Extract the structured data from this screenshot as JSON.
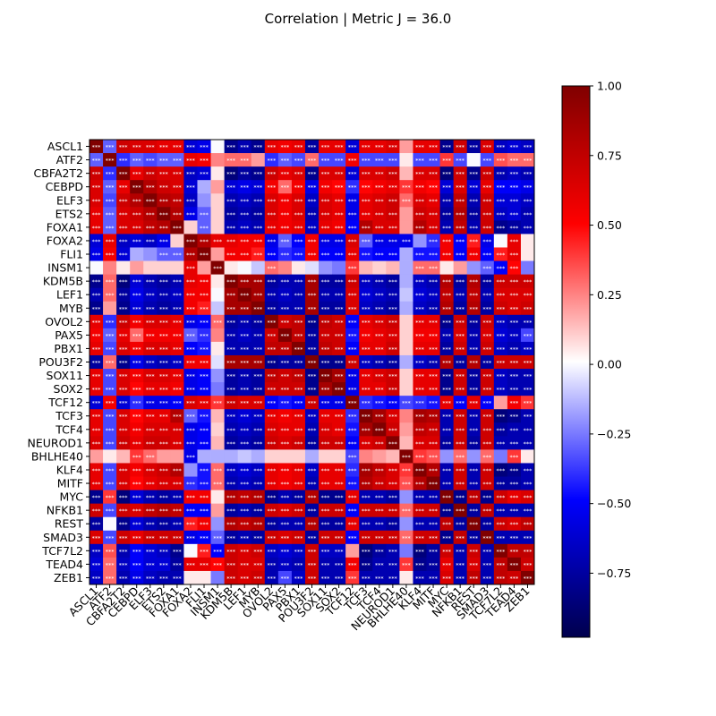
{
  "chart_data": {
    "type": "heatmap",
    "title": "Correlation | Metric J = 36.0",
    "labels": [
      "ASCL1",
      "ATF2",
      "CBFA2T2",
      "CEBPD",
      "ELF3",
      "ETS2",
      "FOXA1",
      "FOXA2",
      "FLI1",
      "INSM1",
      "KDM5B",
      "LEF1",
      "MYB",
      "OVOL2",
      "PAX5",
      "PBX1",
      "POU3F2",
      "SOX11",
      "SOX2",
      "TCF12",
      "TCF3",
      "TCF4",
      "NEUROD1",
      "BHLHE40",
      "KLF4",
      "MITF",
      "MYC",
      "NFKB1",
      "REST",
      "SMAD3",
      "TCF7L2",
      "TEAD4",
      "ZEB1"
    ],
    "colorbar": {
      "colormap": "seismic",
      "vmin": -0.98,
      "vmax": 1.0,
      "ticks": [
        1.0,
        0.75,
        0.5,
        0.25,
        0.0,
        -0.25,
        -0.5,
        -0.75
      ],
      "tick_labels": [
        "1.00",
        "0.75",
        "0.50",
        "0.25",
        "0.00",
        "−0.25",
        "−0.50",
        "−0.75"
      ]
    },
    "annotation": "***",
    "matrix": [
      [
        1.0,
        -0.3,
        0.7,
        0.65,
        0.65,
        0.6,
        0.6,
        -0.6,
        -0.55,
        0.0,
        -0.8,
        -0.7,
        -0.8,
        0.6,
        0.55,
        0.6,
        -0.75,
        0.6,
        0.6,
        -0.6,
        0.6,
        0.6,
        0.65,
        0.2,
        0.6,
        0.6,
        -0.8,
        0.7,
        -0.75,
        0.65,
        -0.65,
        -0.6,
        -0.65
      ],
      [
        -0.3,
        1.0,
        -0.4,
        -0.3,
        -0.35,
        -0.3,
        -0.3,
        0.6,
        0.55,
        0.25,
        0.3,
        0.3,
        0.2,
        -0.4,
        -0.3,
        -0.35,
        0.3,
        -0.35,
        -0.35,
        0.55,
        -0.35,
        -0.35,
        -0.35,
        0.05,
        -0.35,
        -0.35,
        0.4,
        -0.35,
        0.0,
        -0.35,
        0.35,
        0.3,
        0.3
      ],
      [
        0.7,
        -0.4,
        1.0,
        0.6,
        0.7,
        0.65,
        0.65,
        -0.65,
        -0.6,
        0.05,
        -0.85,
        -0.75,
        -0.8,
        0.7,
        0.6,
        0.65,
        -0.8,
        0.65,
        0.65,
        -0.6,
        0.65,
        0.65,
        0.7,
        0.15,
        0.65,
        0.65,
        -0.85,
        0.7,
        -0.8,
        0.7,
        -0.7,
        -0.65,
        -0.7
      ],
      [
        0.65,
        -0.3,
        0.6,
        1.0,
        0.8,
        0.7,
        0.65,
        -0.6,
        -0.15,
        0.2,
        -0.6,
        -0.55,
        -0.6,
        0.55,
        0.3,
        0.55,
        -0.55,
        0.55,
        0.5,
        -0.4,
        0.5,
        0.55,
        0.6,
        0.4,
        0.55,
        0.5,
        -0.6,
        0.65,
        -0.6,
        0.6,
        -0.5,
        -0.5,
        -0.55
      ],
      [
        0.65,
        -0.35,
        0.7,
        0.8,
        1.0,
        0.8,
        0.75,
        -0.65,
        -0.2,
        0.1,
        -0.7,
        -0.65,
        -0.7,
        0.65,
        0.55,
        0.65,
        -0.65,
        0.65,
        0.6,
        -0.55,
        0.6,
        0.65,
        0.7,
        0.3,
        0.65,
        0.6,
        -0.7,
        0.75,
        -0.7,
        0.7,
        -0.6,
        -0.6,
        -0.65
      ],
      [
        0.6,
        -0.3,
        0.65,
        0.7,
        0.8,
        1.0,
        0.8,
        -0.55,
        -0.3,
        0.1,
        -0.75,
        -0.7,
        -0.75,
        0.65,
        0.55,
        0.65,
        -0.7,
        0.65,
        0.6,
        -0.55,
        0.6,
        0.65,
        0.7,
        0.2,
        0.7,
        0.65,
        -0.75,
        0.8,
        -0.75,
        0.7,
        -0.65,
        -0.6,
        -0.7
      ],
      [
        0.6,
        -0.3,
        0.65,
        0.65,
        0.75,
        0.8,
        1.0,
        0.1,
        -0.3,
        0.1,
        -0.7,
        -0.65,
        -0.7,
        0.6,
        0.55,
        0.6,
        -0.65,
        0.6,
        0.55,
        -0.5,
        0.8,
        0.65,
        0.65,
        0.2,
        0.8,
        0.65,
        -0.7,
        0.75,
        -0.7,
        0.7,
        -0.8,
        -0.75,
        -0.7
      ],
      [
        -0.6,
        0.6,
        -0.65,
        -0.6,
        -0.65,
        -0.55,
        0.1,
        1.0,
        0.8,
        0.6,
        0.6,
        0.55,
        0.55,
        -0.55,
        -0.3,
        -0.5,
        0.55,
        -0.55,
        -0.55,
        0.65,
        -0.3,
        -0.55,
        -0.55,
        -0.55,
        -0.2,
        -0.4,
        0.55,
        -0.5,
        0.45,
        -0.55,
        0.0,
        0.6,
        0.05
      ],
      [
        -0.55,
        0.55,
        -0.6,
        -0.15,
        -0.2,
        -0.3,
        -0.3,
        0.8,
        1.0,
        0.2,
        0.55,
        0.55,
        0.45,
        -0.5,
        -0.4,
        -0.45,
        0.55,
        -0.5,
        -0.5,
        0.6,
        -0.45,
        -0.5,
        -0.5,
        -0.15,
        -0.45,
        -0.45,
        0.55,
        -0.5,
        0.55,
        -0.5,
        0.45,
        0.6,
        0.05
      ],
      [
        0.0,
        0.25,
        0.05,
        0.2,
        0.1,
        0.1,
        0.1,
        0.6,
        0.2,
        1.0,
        0.05,
        0.0,
        -0.1,
        0.3,
        0.25,
        0.05,
        -0.05,
        -0.2,
        -0.25,
        0.4,
        0.15,
        0.1,
        0.15,
        -0.15,
        0.3,
        0.3,
        0.05,
        0.2,
        -0.2,
        -0.3,
        -0.5,
        0.5,
        -0.25
      ],
      [
        -0.8,
        0.3,
        -0.85,
        -0.6,
        -0.7,
        -0.75,
        -0.7,
        0.6,
        0.55,
        0.05,
        1.0,
        0.85,
        0.85,
        -0.75,
        -0.7,
        -0.7,
        0.85,
        -0.75,
        -0.75,
        0.7,
        -0.65,
        -0.7,
        -0.75,
        -0.15,
        -0.65,
        -0.7,
        0.8,
        -0.75,
        0.8,
        -0.75,
        0.7,
        0.7,
        0.7
      ],
      [
        -0.7,
        0.3,
        -0.75,
        -0.55,
        -0.65,
        -0.7,
        -0.65,
        0.55,
        0.55,
        0.0,
        0.85,
        1.0,
        0.85,
        -0.7,
        -0.65,
        -0.7,
        0.85,
        -0.7,
        -0.7,
        0.65,
        -0.6,
        -0.65,
        -0.7,
        -0.1,
        -0.6,
        -0.65,
        0.75,
        -0.7,
        0.75,
        -0.7,
        0.65,
        0.65,
        0.65
      ],
      [
        -0.8,
        0.2,
        -0.8,
        -0.6,
        -0.7,
        -0.75,
        -0.7,
        0.55,
        0.45,
        -0.1,
        0.85,
        0.85,
        1.0,
        -0.75,
        -0.7,
        -0.7,
        0.85,
        -0.75,
        -0.75,
        0.65,
        -0.65,
        -0.7,
        -0.75,
        -0.15,
        -0.65,
        -0.7,
        0.8,
        -0.75,
        0.8,
        -0.75,
        0.7,
        0.65,
        0.7
      ],
      [
        0.6,
        -0.4,
        0.7,
        0.55,
        0.65,
        0.65,
        0.6,
        -0.55,
        -0.5,
        0.3,
        -0.75,
        -0.7,
        -0.75,
        1.0,
        0.7,
        0.75,
        -0.8,
        0.75,
        0.7,
        -0.5,
        0.6,
        0.65,
        0.7,
        0.1,
        0.6,
        0.6,
        -0.8,
        0.7,
        -0.75,
        0.7,
        -0.65,
        -0.7,
        -0.7
      ],
      [
        0.55,
        -0.3,
        0.6,
        0.3,
        0.55,
        0.55,
        0.55,
        -0.3,
        -0.4,
        0.25,
        -0.7,
        -0.65,
        -0.7,
        0.7,
        1.0,
        0.75,
        -0.75,
        0.7,
        0.7,
        -0.45,
        0.55,
        0.6,
        0.65,
        0.1,
        0.55,
        0.55,
        -0.7,
        0.65,
        -0.7,
        0.65,
        -0.6,
        -0.65,
        -0.35
      ],
      [
        0.6,
        -0.35,
        0.65,
        0.55,
        0.65,
        0.65,
        0.6,
        -0.5,
        -0.45,
        0.05,
        -0.7,
        -0.7,
        -0.7,
        0.75,
        0.75,
        1.0,
        -0.75,
        0.75,
        0.7,
        -0.5,
        0.6,
        0.6,
        0.7,
        0.1,
        0.6,
        0.6,
        -0.75,
        0.7,
        -0.7,
        0.7,
        -0.65,
        -0.7,
        -0.65
      ],
      [
        -0.75,
        0.3,
        -0.8,
        -0.55,
        -0.65,
        -0.7,
        -0.65,
        0.55,
        0.55,
        -0.05,
        0.85,
        0.85,
        0.85,
        -0.8,
        -0.75,
        -0.75,
        1.0,
        -0.8,
        -0.8,
        0.7,
        -0.65,
        -0.7,
        -0.75,
        -0.15,
        -0.65,
        -0.7,
        0.8,
        -0.75,
        0.8,
        -0.75,
        0.7,
        0.7,
        0.7
      ],
      [
        0.6,
        -0.35,
        0.65,
        0.55,
        0.65,
        0.65,
        0.6,
        -0.55,
        -0.5,
        -0.2,
        -0.75,
        -0.7,
        -0.75,
        0.75,
        0.7,
        0.75,
        -0.8,
        1.0,
        0.85,
        -0.55,
        0.6,
        0.65,
        0.7,
        0.1,
        0.6,
        0.6,
        -0.8,
        0.7,
        -0.75,
        0.7,
        -0.65,
        -0.7,
        -0.7
      ],
      [
        0.6,
        -0.35,
        0.65,
        0.5,
        0.6,
        0.6,
        0.55,
        -0.55,
        -0.5,
        -0.25,
        -0.75,
        -0.7,
        -0.75,
        0.7,
        0.7,
        0.7,
        -0.8,
        0.85,
        1.0,
        -0.55,
        0.6,
        0.6,
        0.7,
        0.1,
        0.6,
        0.6,
        -0.8,
        0.7,
        -0.75,
        0.7,
        -0.65,
        -0.7,
        -0.7
      ],
      [
        -0.6,
        0.55,
        -0.6,
        -0.4,
        -0.55,
        -0.55,
        -0.5,
        0.65,
        0.6,
        0.4,
        0.7,
        0.65,
        0.65,
        -0.5,
        -0.45,
        -0.5,
        0.7,
        -0.55,
        -0.55,
        1.0,
        -0.4,
        -0.45,
        -0.5,
        -0.35,
        -0.4,
        -0.45,
        0.6,
        -0.5,
        0.6,
        -0.5,
        0.2,
        0.55,
        0.4
      ],
      [
        0.6,
        -0.35,
        0.65,
        0.5,
        0.6,
        0.6,
        0.8,
        -0.3,
        -0.45,
        0.15,
        -0.65,
        -0.6,
        -0.65,
        0.6,
        0.55,
        0.6,
        -0.65,
        0.6,
        0.6,
        -0.4,
        1.0,
        0.85,
        0.65,
        0.25,
        0.85,
        0.8,
        -0.7,
        0.7,
        -0.7,
        0.7,
        -0.85,
        -0.8,
        -0.7
      ],
      [
        0.6,
        -0.35,
        0.65,
        0.55,
        0.65,
        0.65,
        0.65,
        -0.55,
        -0.5,
        0.1,
        -0.7,
        -0.65,
        -0.7,
        0.65,
        0.6,
        0.6,
        -0.7,
        0.65,
        0.6,
        -0.45,
        0.85,
        1.0,
        0.7,
        0.2,
        0.75,
        0.7,
        -0.7,
        0.7,
        -0.7,
        0.7,
        -0.75,
        -0.7,
        -0.7
      ],
      [
        0.65,
        -0.35,
        0.7,
        0.6,
        0.7,
        0.7,
        0.65,
        -0.55,
        -0.5,
        0.15,
        -0.75,
        -0.7,
        -0.75,
        0.7,
        0.65,
        0.7,
        -0.75,
        0.7,
        0.7,
        -0.5,
        0.65,
        0.7,
        1.0,
        0.15,
        0.65,
        0.65,
        -0.75,
        0.7,
        -0.75,
        0.7,
        -0.7,
        -0.7,
        -0.7
      ],
      [
        0.2,
        0.05,
        0.15,
        0.4,
        0.3,
        0.2,
        0.2,
        -0.55,
        -0.15,
        -0.15,
        -0.15,
        -0.1,
        -0.15,
        0.1,
        0.1,
        0.1,
        -0.15,
        0.1,
        0.1,
        -0.35,
        0.25,
        0.2,
        0.15,
        1.0,
        0.4,
        0.35,
        -0.2,
        0.3,
        -0.2,
        0.3,
        -0.25,
        0.4,
        0.05
      ],
      [
        0.6,
        -0.35,
        0.65,
        0.55,
        0.65,
        0.7,
        0.8,
        -0.2,
        -0.45,
        0.3,
        -0.65,
        -0.6,
        -0.65,
        0.6,
        0.55,
        0.6,
        -0.65,
        0.6,
        0.6,
        -0.4,
        0.85,
        0.75,
        0.65,
        0.4,
        1.0,
        0.8,
        -0.7,
        0.7,
        -0.7,
        0.7,
        -0.85,
        -0.8,
        -0.7
      ],
      [
        0.6,
        -0.35,
        0.65,
        0.5,
        0.6,
        0.65,
        0.65,
        -0.4,
        -0.45,
        0.3,
        -0.7,
        -0.65,
        -0.7,
        0.6,
        0.55,
        0.6,
        -0.7,
        0.6,
        0.6,
        -0.45,
        0.8,
        0.7,
        0.65,
        0.35,
        0.8,
        1.0,
        -0.7,
        0.7,
        -0.7,
        0.7,
        -0.75,
        -0.75,
        -0.7
      ],
      [
        -0.8,
        0.4,
        -0.85,
        -0.6,
        -0.7,
        -0.75,
        -0.7,
        0.55,
        0.55,
        0.05,
        0.8,
        0.75,
        0.8,
        -0.8,
        -0.7,
        -0.75,
        0.8,
        -0.8,
        -0.8,
        0.6,
        -0.7,
        -0.7,
        -0.75,
        -0.2,
        -0.7,
        -0.7,
        1.0,
        -0.8,
        0.75,
        -0.8,
        0.7,
        0.6,
        0.65
      ],
      [
        0.7,
        -0.35,
        0.7,
        0.65,
        0.75,
        0.8,
        0.75,
        -0.5,
        -0.5,
        0.2,
        -0.75,
        -0.7,
        -0.75,
        0.7,
        0.65,
        0.7,
        -0.75,
        0.7,
        0.7,
        -0.5,
        0.7,
        0.7,
        0.7,
        0.3,
        0.7,
        0.7,
        -0.8,
        1.0,
        -0.75,
        0.75,
        -0.7,
        -0.7,
        -0.7
      ],
      [
        -0.75,
        0.0,
        -0.8,
        -0.6,
        -0.7,
        -0.75,
        -0.7,
        0.45,
        0.55,
        -0.2,
        0.8,
        0.75,
        0.8,
        -0.75,
        -0.7,
        -0.7,
        0.8,
        -0.75,
        -0.75,
        0.6,
        -0.7,
        -0.7,
        -0.75,
        -0.2,
        -0.7,
        -0.7,
        0.75,
        -0.75,
        1.0,
        -0.75,
        0.7,
        0.65,
        0.75
      ],
      [
        0.65,
        -0.35,
        0.7,
        0.6,
        0.7,
        0.7,
        0.7,
        -0.55,
        -0.5,
        -0.3,
        -0.75,
        -0.7,
        -0.75,
        0.7,
        0.65,
        0.7,
        -0.75,
        0.7,
        0.7,
        -0.5,
        0.7,
        0.7,
        0.7,
        0.3,
        0.7,
        0.7,
        -0.8,
        0.75,
        -0.75,
        1.0,
        -0.7,
        -0.7,
        -0.7
      ],
      [
        -0.65,
        0.35,
        -0.7,
        -0.5,
        -0.6,
        -0.65,
        -0.8,
        0.0,
        0.45,
        -0.5,
        0.7,
        0.65,
        0.7,
        -0.65,
        -0.6,
        -0.65,
        0.7,
        -0.65,
        -0.65,
        0.2,
        -0.85,
        -0.75,
        -0.7,
        -0.25,
        -0.85,
        -0.75,
        0.7,
        -0.7,
        0.7,
        -0.7,
        1.0,
        0.75,
        0.75
      ],
      [
        -0.6,
        0.3,
        -0.65,
        -0.5,
        -0.6,
        -0.6,
        -0.75,
        0.6,
        0.6,
        0.5,
        0.7,
        0.65,
        0.65,
        -0.7,
        -0.65,
        -0.7,
        0.7,
        -0.7,
        -0.7,
        0.55,
        -0.8,
        -0.7,
        -0.7,
        0.4,
        -0.8,
        -0.75,
        0.6,
        -0.7,
        0.65,
        -0.7,
        0.75,
        1.0,
        0.7
      ],
      [
        -0.65,
        0.3,
        -0.7,
        -0.55,
        -0.65,
        -0.7,
        -0.7,
        0.05,
        0.05,
        -0.25,
        0.7,
        0.65,
        0.7,
        -0.7,
        -0.35,
        -0.65,
        0.7,
        -0.7,
        -0.7,
        0.4,
        -0.7,
        -0.7,
        -0.7,
        0.05,
        -0.7,
        -0.7,
        0.65,
        -0.7,
        0.75,
        -0.7,
        0.75,
        0.7,
        1.0
      ]
    ]
  }
}
